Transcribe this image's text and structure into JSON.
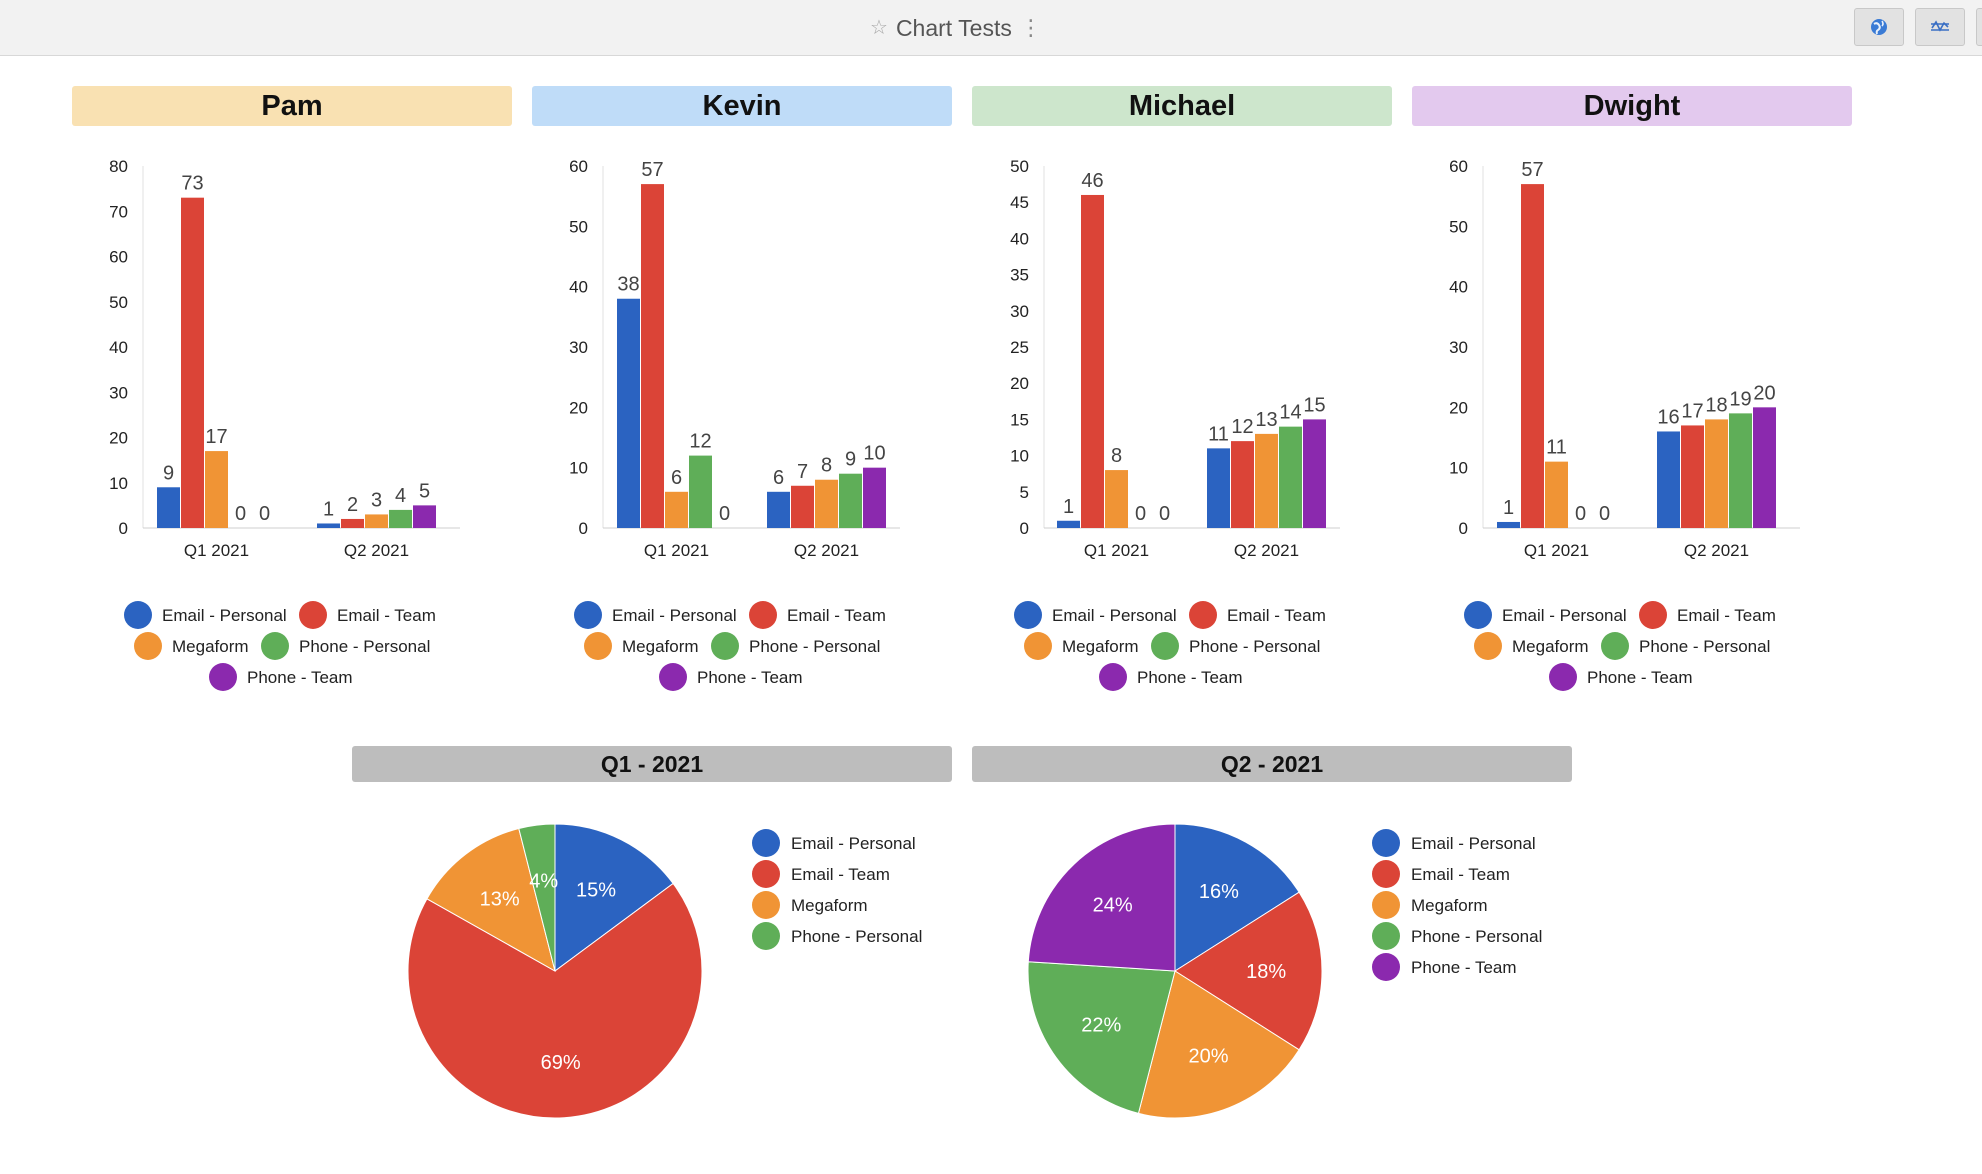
{
  "app": {
    "title": "Chart Tests",
    "icons": [
      "star-icon",
      "kebab-menu-icon",
      "globe-icon",
      "chart-settings-icon"
    ]
  },
  "colors": {
    "email_personal": "#2b63c1",
    "email_team": "#db4437",
    "megaform": "#f09435",
    "phone_personal": "#5fae58",
    "phone_team": "#8b29ae"
  },
  "panels": [
    {
      "name": "Pam",
      "header_color": "#f9e1b2"
    },
    {
      "name": "Kevin",
      "header_color": "#bfdcf8"
    },
    {
      "name": "Michael",
      "header_color": "#cde6cc"
    },
    {
      "name": "Dwight",
      "header_color": "#e3c9ee"
    }
  ],
  "pie_titles": [
    "Q1 - 2021",
    "Q2 - 2021"
  ],
  "chart_data": [
    {
      "type": "bar",
      "title": "Pam",
      "categories": [
        "Q1 2021",
        "Q2 2021"
      ],
      "series": [
        {
          "name": "Email - Personal",
          "values": [
            9,
            1
          ]
        },
        {
          "name": "Email - Team",
          "values": [
            73,
            2
          ]
        },
        {
          "name": "Megaform",
          "values": [
            17,
            3
          ]
        },
        {
          "name": "Phone - Personal",
          "values": [
            0,
            4
          ]
        },
        {
          "name": "Phone - Team",
          "values": [
            0,
            5
          ]
        }
      ],
      "ylim": [
        0,
        80
      ],
      "yticks": [
        0,
        10,
        20,
        30,
        40,
        50,
        60,
        70,
        80
      ],
      "legend": "bottom"
    },
    {
      "type": "bar",
      "title": "Kevin",
      "categories": [
        "Q1 2021",
        "Q2 2021"
      ],
      "series": [
        {
          "name": "Email - Personal",
          "values": [
            38,
            6
          ]
        },
        {
          "name": "Email - Team",
          "values": [
            57,
            7
          ]
        },
        {
          "name": "Megaform",
          "values": [
            6,
            8
          ]
        },
        {
          "name": "Phone - Personal",
          "values": [
            12,
            9
          ]
        },
        {
          "name": "Phone - Team",
          "values": [
            0,
            10
          ]
        }
      ],
      "ylim": [
        0,
        60
      ],
      "yticks": [
        0,
        10,
        20,
        30,
        40,
        50,
        60
      ],
      "legend": "bottom"
    },
    {
      "type": "bar",
      "title": "Michael",
      "categories": [
        "Q1 2021",
        "Q2 2021"
      ],
      "series": [
        {
          "name": "Email - Personal",
          "values": [
            1,
            11
          ]
        },
        {
          "name": "Email - Team",
          "values": [
            46,
            12
          ]
        },
        {
          "name": "Megaform",
          "values": [
            8,
            13
          ]
        },
        {
          "name": "Phone - Personal",
          "values": [
            0,
            14
          ]
        },
        {
          "name": "Phone - Team",
          "values": [
            0,
            15
          ]
        }
      ],
      "ylim": [
        0,
        50
      ],
      "yticks": [
        0,
        5,
        10,
        15,
        20,
        25,
        30,
        35,
        40,
        45,
        50
      ],
      "legend": "bottom"
    },
    {
      "type": "bar",
      "title": "Dwight",
      "categories": [
        "Q1 2021",
        "Q2 2021"
      ],
      "series": [
        {
          "name": "Email - Personal",
          "values": [
            1,
            16
          ]
        },
        {
          "name": "Email - Team",
          "values": [
            57,
            17
          ]
        },
        {
          "name": "Megaform",
          "values": [
            11,
            18
          ]
        },
        {
          "name": "Phone - Personal",
          "values": [
            0,
            19
          ]
        },
        {
          "name": "Phone - Team",
          "values": [
            0,
            20
          ]
        }
      ],
      "ylim": [
        0,
        60
      ],
      "yticks": [
        0,
        10,
        20,
        30,
        40,
        50,
        60
      ],
      "legend": "bottom"
    },
    {
      "type": "pie",
      "title": "Q1 - 2021",
      "slices": [
        {
          "name": "Email - Personal",
          "percent": 15
        },
        {
          "name": "Email - Team",
          "percent": 69
        },
        {
          "name": "Megaform",
          "percent": 13
        },
        {
          "name": "Phone - Personal",
          "percent": 4
        }
      ],
      "legend": "right"
    },
    {
      "type": "pie",
      "title": "Q2 - 2021",
      "slices": [
        {
          "name": "Email - Personal",
          "percent": 16
        },
        {
          "name": "Email - Team",
          "percent": 18
        },
        {
          "name": "Megaform",
          "percent": 20
        },
        {
          "name": "Phone - Personal",
          "percent": 22
        },
        {
          "name": "Phone - Team",
          "percent": 24
        }
      ],
      "legend": "right"
    }
  ]
}
